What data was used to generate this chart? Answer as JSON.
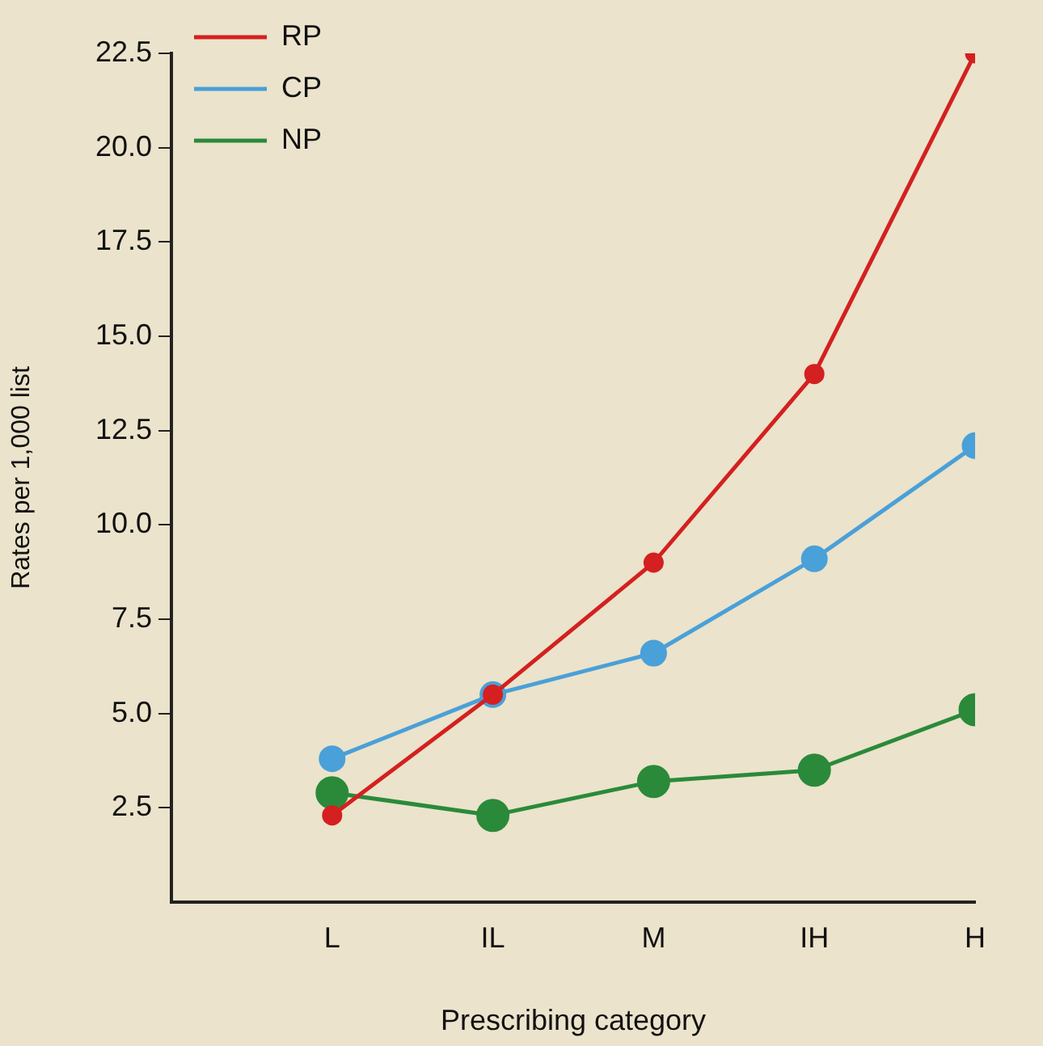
{
  "chart_data": {
    "type": "line",
    "xlabel": "Prescribing category",
    "ylabel": "Rates per 1,000 list",
    "categories": [
      "L",
      "IL",
      "M",
      "IH",
      "H"
    ],
    "series": [
      {
        "name": "RP",
        "color": "#d42020",
        "values": [
          2.3,
          5.5,
          9.0,
          14.0,
          22.5
        ]
      },
      {
        "name": "CP",
        "color": "#4aa0d8",
        "values": [
          3.8,
          5.5,
          6.6,
          9.1,
          12.1
        ]
      },
      {
        "name": "NP",
        "color": "#2a8a3a",
        "values": [
          2.9,
          2.3,
          3.2,
          3.5,
          5.1
        ]
      }
    ],
    "ylim": [
      0,
      22.5
    ],
    "yticks": [
      {
        "value": 2.5,
        "label": "2.5"
      },
      {
        "value": 5,
        "label": "5.0"
      },
      {
        "value": 7.5,
        "label": "7.5"
      },
      {
        "value": 10,
        "label": "10.0"
      },
      {
        "value": 12.5,
        "label": "12.5"
      },
      {
        "value": 15,
        "label": "15.0"
      },
      {
        "value": 17.5,
        "label": "17.5"
      },
      {
        "value": 20,
        "label": "20.0"
      },
      {
        "value": 22.5,
        "label": "22.5"
      }
    ],
    "grid": false,
    "legend": "top left",
    "marker": "circle",
    "line_style": "solid"
  }
}
